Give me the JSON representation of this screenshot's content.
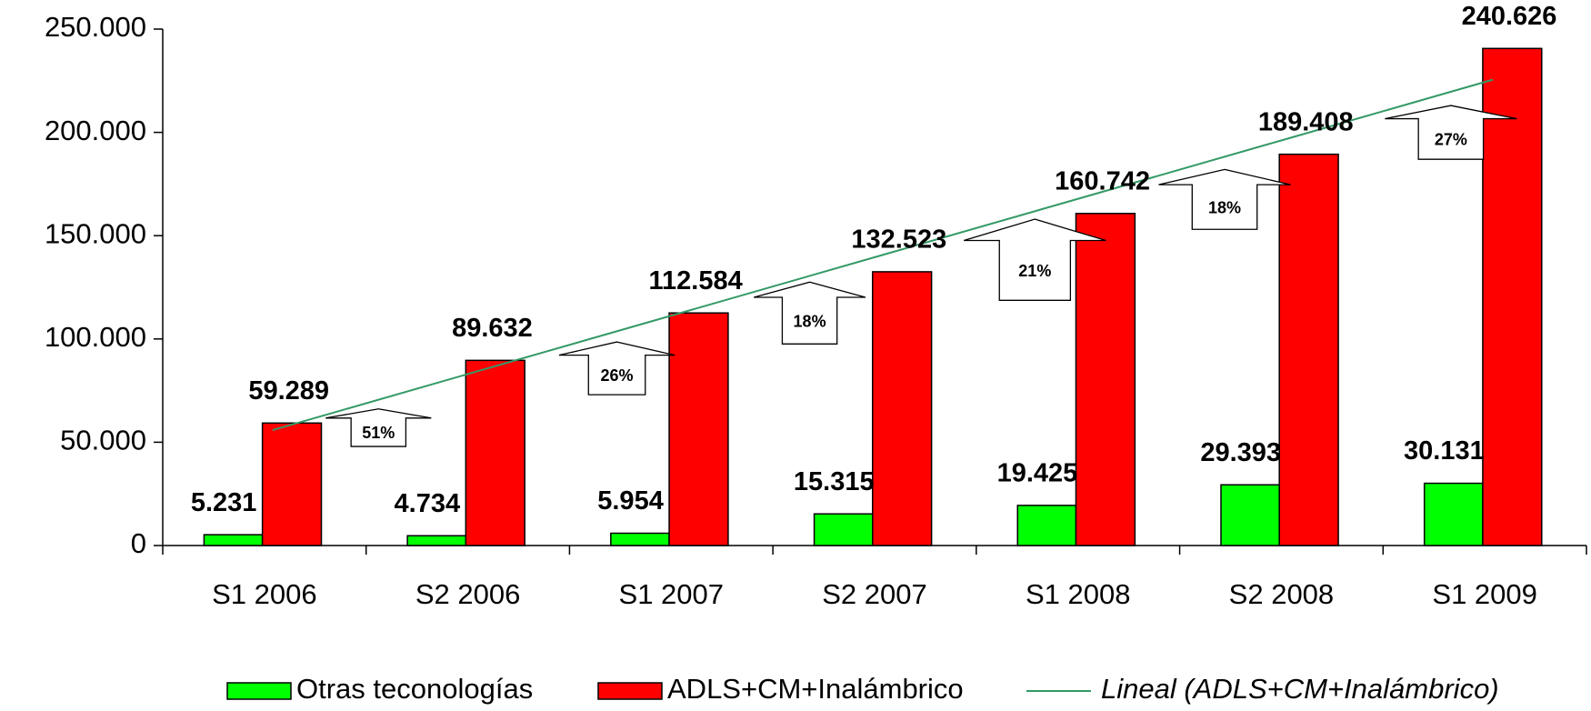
{
  "chart_data": {
    "type": "bar",
    "categories": [
      "S1 2006",
      "S2 2006",
      "S1 2007",
      "S2 2007",
      "S1 2008",
      "S2 2008",
      "S1 2009"
    ],
    "series": [
      {
        "name": "Otras teconologías",
        "color": "#00ff00",
        "values": [
          5231,
          4734,
          5954,
          15315,
          19425,
          29393,
          30131
        ],
        "value_labels": [
          "5.231",
          "4.734",
          "5.954",
          "15.315",
          "19.425",
          "29.393",
          "30.131"
        ]
      },
      {
        "name": "ADLS+CM+Inalámbrico",
        "color": "#ff0000",
        "values": [
          59289,
          89632,
          112584,
          132523,
          160742,
          189408,
          240626
        ],
        "value_labels": [
          "59.289",
          "89.632",
          "112.584",
          "132.523",
          "160.742",
          "189.408",
          "240.626"
        ]
      }
    ],
    "trend": {
      "name": "Lineal (ADLS+CM+Inalámbrico)",
      "color": "#339966",
      "values": [
        55859,
        84135,
        112411,
        140686,
        168962,
        197238,
        225513
      ]
    },
    "growth_labels": [
      "51%",
      "26%",
      "18%",
      "21%",
      "18%",
      "27%"
    ],
    "ylim": [
      0,
      250000
    ],
    "yticks": [
      0,
      {
        "value": 50000,
        "label": "50.000"
      },
      {
        "value": 100000,
        "label": "100.000"
      },
      {
        "value": 150000,
        "label": "150.000"
      },
      {
        "value": 200000,
        "label": "200.000"
      },
      {
        "value": 250000,
        "label": "250.000"
      }
    ],
    "legend": "bottom"
  }
}
